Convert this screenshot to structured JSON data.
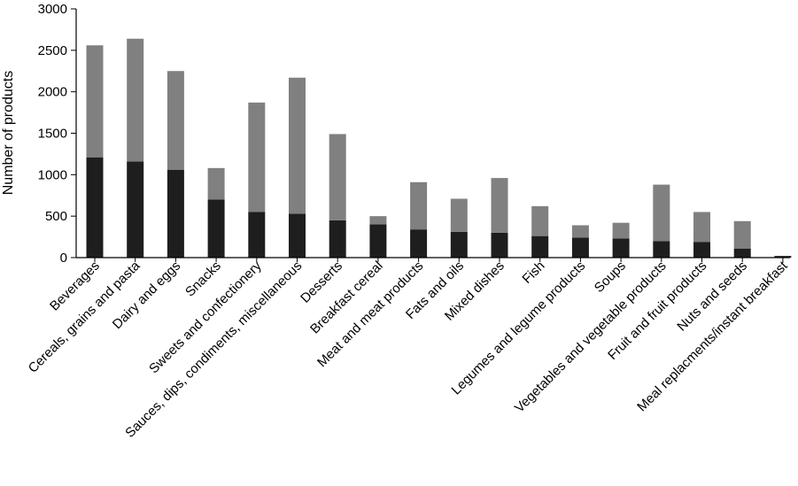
{
  "chart_data": {
    "type": "bar",
    "stacked": true,
    "title": "",
    "xlabel": "",
    "ylabel": "Number of products",
    "ylim": [
      0,
      3000
    ],
    "yticks": [
      0,
      500,
      1000,
      1500,
      2000,
      2500,
      3000
    ],
    "grid": false,
    "legend": "none",
    "categories": [
      "Beverages",
      "Cereals, grains and pasta",
      "Dairy and eggs",
      "Snacks",
      "Sweets and confectionery",
      "Sauces, dips, condiments, miscellaneous",
      "Desserts",
      "Breakfast cereal",
      "Meat and meat products",
      "Fats and oils",
      "Mixed dishes",
      "Fish",
      "Legumes and legume products",
      "Soups",
      "Vegetables and vegetable products",
      "Fruit and fruit products",
      "Nuts and seeds",
      "Meal replacments/instant breakfast"
    ],
    "series": [
      {
        "color": "#1e1e1e",
        "values": [
          1210,
          1160,
          1060,
          700,
          550,
          530,
          450,
          400,
          340,
          310,
          300,
          260,
          240,
          230,
          200,
          190,
          110,
          20
        ]
      },
      {
        "color": "#808080",
        "values": [
          1350,
          1480,
          1190,
          380,
          1320,
          1640,
          1040,
          100,
          570,
          400,
          660,
          360,
          150,
          190,
          680,
          360,
          330,
          0
        ]
      }
    ]
  }
}
